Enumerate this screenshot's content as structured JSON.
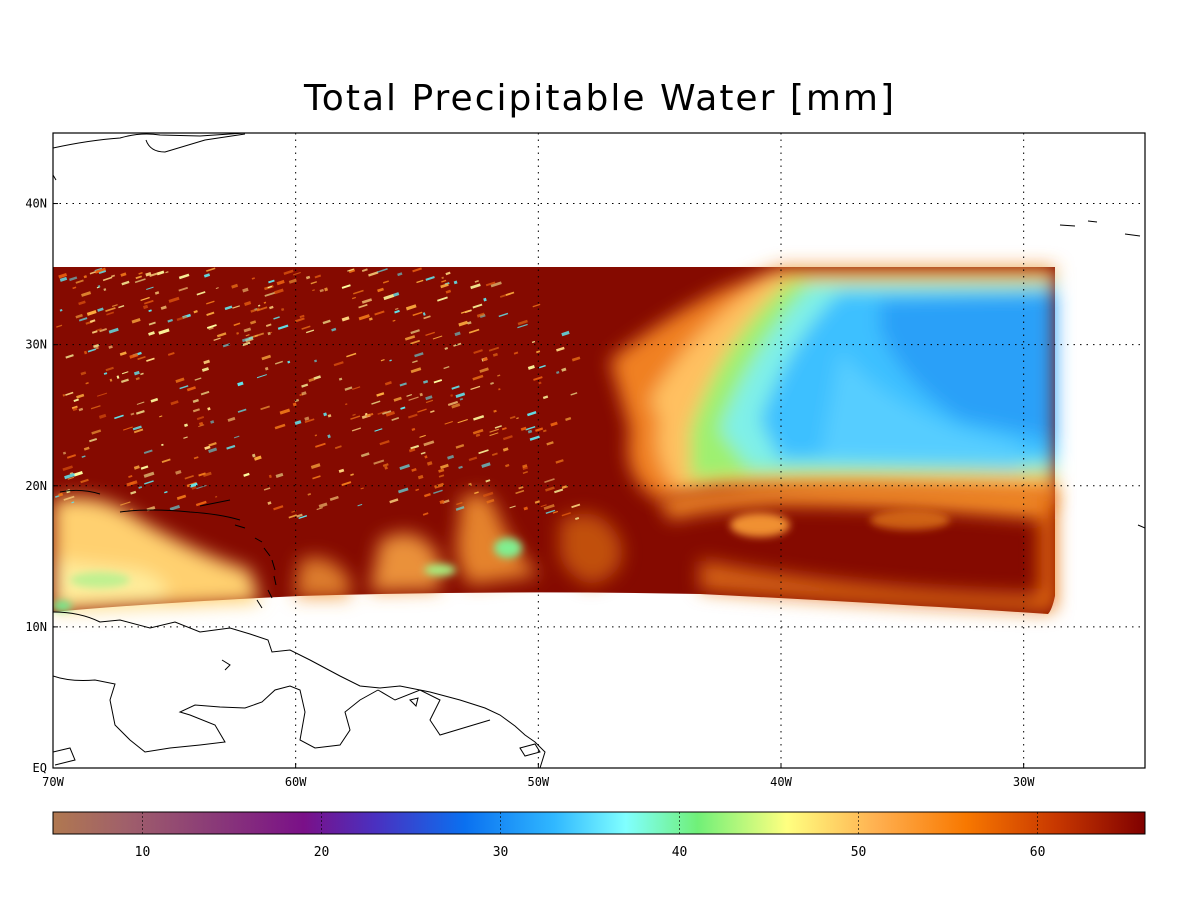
{
  "title": "Total Precipitable Water [mm]",
  "map": {
    "lon_range": [
      -70,
      -25
    ],
    "lat_range": [
      0,
      45
    ],
    "lon_ticks": [
      {
        "value": -70,
        "label": "70W"
      },
      {
        "value": -60,
        "label": "60W"
      },
      {
        "value": -50,
        "label": "50W"
      },
      {
        "value": -40,
        "label": "40W"
      },
      {
        "value": -30,
        "label": "30W"
      }
    ],
    "lat_ticks": [
      {
        "value": 0,
        "label": "EQ"
      },
      {
        "value": 10,
        "label": "10N"
      },
      {
        "value": 20,
        "label": "20N"
      },
      {
        "value": 30,
        "label": "30N"
      },
      {
        "value": 40,
        "label": "40N"
      }
    ],
    "grid": "dotted"
  },
  "colorbar": {
    "min": 5,
    "max": 66,
    "ticks": [
      10,
      20,
      30,
      40,
      50,
      60
    ],
    "stops": [
      {
        "value": 5,
        "color": "#b07850"
      },
      {
        "value": 9,
        "color": "#a0606a"
      },
      {
        "value": 14,
        "color": "#8a3a78"
      },
      {
        "value": 19,
        "color": "#7a1088"
      },
      {
        "value": 23,
        "color": "#4a30c0"
      },
      {
        "value": 28,
        "color": "#0a70f0"
      },
      {
        "value": 33,
        "color": "#30b8ff"
      },
      {
        "value": 37,
        "color": "#80ffff"
      },
      {
        "value": 41,
        "color": "#70f078"
      },
      {
        "value": 46,
        "color": "#ffff80"
      },
      {
        "value": 51,
        "color": "#ffb050"
      },
      {
        "value": 56,
        "color": "#f87800"
      },
      {
        "value": 61,
        "color": "#c83800"
      },
      {
        "value": 66,
        "color": "#800000"
      }
    ]
  }
}
